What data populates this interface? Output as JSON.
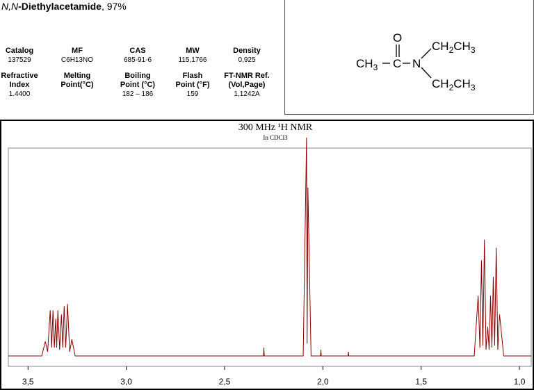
{
  "header": {
    "title_italic": "N,N",
    "title_bold": "-Diethylacetamide",
    "title_rest": ", 97%",
    "properties": [
      {
        "label": "Catalog",
        "value": "137529"
      },
      {
        "label": "MF",
        "value": "C6H13NO"
      },
      {
        "label": "CAS",
        "value": "685-91-6"
      },
      {
        "label": "MW",
        "value": "115,1766"
      },
      {
        "label": "Density",
        "value": "0,925"
      },
      {
        "label": "Refractive\nIndex",
        "value": "1.4400"
      },
      {
        "label": "Melting\nPoint(°C)"
      },
      {
        "label": "Boiling\nPoint (°C)",
        "value": "182 – 186"
      },
      {
        "label": "Flash\nPoint (°F)",
        "value": "159"
      },
      {
        "label": "FT-NMR Ref.\n(Vol,Page)",
        "value": "1,1242A"
      }
    ]
  },
  "structure": {
    "oxygen": "O",
    "carbon": "C",
    "nitrogen": "N",
    "methyl": [
      "CH",
      "3"
    ],
    "ethyl_top": [
      "CH",
      "2",
      "CH",
      "3"
    ],
    "ethyl_bottom": [
      "CH",
      "2",
      "CH",
      "3"
    ]
  },
  "chart_data": {
    "type": "line",
    "title": "300 MHz ¹H NMR",
    "subtitle": "In CDCl3",
    "color": "#8b0000",
    "x": [
      3.6,
      3.43,
      3.412,
      3.4,
      3.387,
      3.38,
      3.373,
      3.366,
      3.359,
      3.354,
      3.348,
      3.339,
      3.33,
      3.323,
      3.316,
      3.308,
      3.299,
      3.288,
      3.277,
      3.26,
      2.302,
      2.3,
      2.298,
      2.1,
      2.083,
      2.08,
      2.076,
      2.06,
      2.012,
      2.01,
      2.008,
      1.872,
      1.87,
      1.868,
      1.23,
      1.21,
      1.201,
      1.193,
      1.186,
      1.178,
      1.17,
      1.161,
      1.154,
      1.147,
      1.14,
      1.133,
      1.126,
      1.118,
      1.11,
      1.101,
      1.08,
      0.94
    ],
    "values": [
      0,
      0,
      7,
      2,
      22,
      4,
      22,
      4,
      18,
      4,
      22,
      3,
      20,
      4,
      24,
      4,
      25,
      2,
      8,
      0,
      0,
      4,
      0,
      0,
      105,
      6,
      81,
      0,
      0,
      3,
      0,
      0,
      2,
      0,
      0,
      29,
      4,
      46,
      5,
      56,
      3,
      14,
      3,
      29,
      4,
      38,
      5,
      52,
      3,
      20,
      0,
      0
    ],
    "xlim": [
      3.6,
      0.94
    ],
    "ylim": [
      -5,
      100
    ],
    "xticks": [
      {
        "value": 3.5,
        "label": "3,5"
      },
      {
        "value": 3.0,
        "label": "3,0"
      },
      {
        "value": 2.5,
        "label": "2,5"
      },
      {
        "value": 2.0,
        "label": "2,0"
      },
      {
        "value": 1.5,
        "label": "1,5"
      },
      {
        "value": 1.0,
        "label": "1,0"
      }
    ]
  }
}
